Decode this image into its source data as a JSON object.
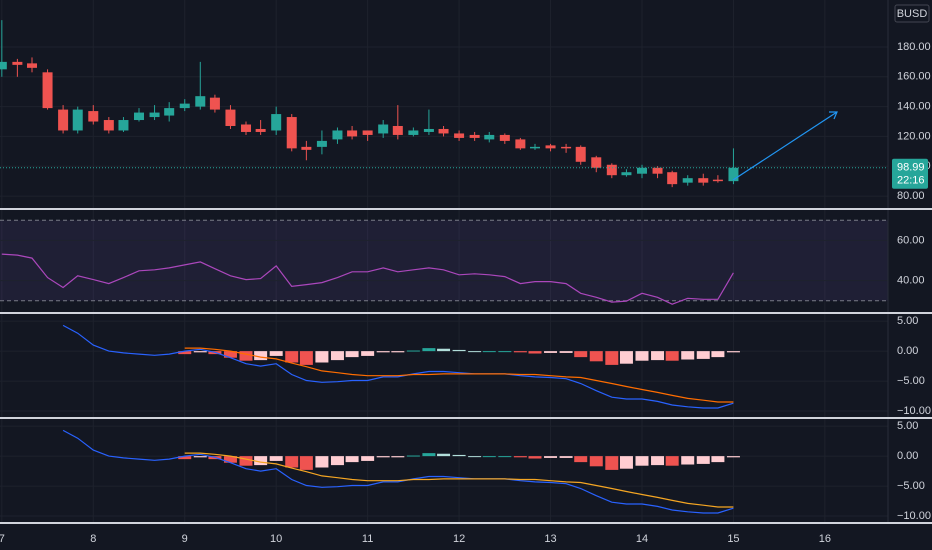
{
  "chart_data": [
    {
      "type": "candlestick",
      "currency": "BUSD",
      "x": [
        7,
        7.17,
        7.33,
        7.5,
        7.67,
        7.83,
        8,
        8.17,
        8.33,
        8.5,
        8.67,
        8.83,
        9,
        9.17,
        9.33,
        9.5,
        9.67,
        9.83,
        10,
        10.17,
        10.33,
        10.5,
        10.67,
        10.83,
        11,
        11.17,
        11.33,
        11.5,
        11.67,
        11.83,
        12,
        12.17,
        12.33,
        12.5,
        12.67,
        12.83,
        13,
        13.17,
        13.33,
        13.5,
        13.67,
        13.83,
        14,
        14.17,
        14.33,
        14.5,
        14.67,
        14.83,
        15
      ],
      "open": [
        165,
        170,
        169,
        163,
        138,
        124,
        137,
        131,
        124,
        131,
        133,
        134,
        139,
        140,
        146,
        138,
        128,
        125,
        124,
        133,
        113,
        113,
        118,
        124,
        124,
        122,
        127,
        121,
        123,
        125,
        122,
        121,
        118,
        121,
        118,
        112,
        114,
        113,
        113,
        106,
        101,
        94,
        95,
        99,
        96,
        89,
        92,
        91,
        90
      ],
      "high": [
        198,
        172,
        173,
        165,
        141,
        140,
        141,
        133,
        133,
        139,
        141,
        143,
        145,
        170,
        148,
        141,
        130,
        131,
        140,
        135,
        117,
        124,
        126,
        127,
        124,
        131,
        141,
        126,
        138,
        127,
        124,
        123,
        123,
        122,
        119,
        115,
        115,
        115,
        114,
        107,
        102,
        98,
        101,
        100,
        97,
        94,
        95,
        94,
        112
      ],
      "low": [
        160,
        160,
        163,
        138,
        122,
        122,
        128,
        122,
        123,
        130,
        131,
        130,
        137,
        138,
        136,
        125,
        121,
        121,
        121,
        110,
        104,
        108,
        115,
        118,
        117,
        119,
        118,
        120,
        121,
        120,
        117,
        117,
        116,
        115,
        111,
        111,
        110,
        109,
        101,
        96,
        92,
        93,
        92,
        92,
        86,
        87,
        87,
        89,
        88
      ],
      "close": [
        170,
        168,
        166,
        139,
        124,
        138,
        130,
        124,
        131,
        136,
        136,
        139,
        142,
        147,
        138,
        127,
        123,
        123,
        135,
        112,
        111,
        117,
        124,
        120,
        121,
        128,
        121,
        124,
        125,
        122,
        119,
        119,
        121,
        117,
        112,
        113,
        112,
        112,
        103,
        99,
        94,
        96,
        99,
        95,
        88,
        92,
        89,
        90,
        98.99
      ],
      "up_color": "#26a69a",
      "down_color": "#ef5350",
      "last_price": 98.99,
      "countdown": "22:16",
      "xlim": [
        6.98,
        16.69
      ],
      "xticks": [
        7,
        8,
        9,
        10,
        11,
        12,
        13,
        14,
        15,
        16
      ],
      "ylim": [
        72,
        211.5
      ],
      "yticks": [
        {
          "value": 80,
          "label": "80.00"
        },
        {
          "value": 100,
          "label": "100.00"
        },
        {
          "value": 120,
          "label": "120.00"
        },
        {
          "value": 140,
          "label": "140.00"
        },
        {
          "value": 160,
          "label": "160.00"
        },
        {
          "value": 180,
          "label": "180.00"
        }
      ]
    },
    {
      "type": "line",
      "values": [
        53.2,
        52.7,
        51.2,
        41.5,
        36.6,
        42.4,
        40.5,
        38.5,
        41.5,
        44.9,
        45.4,
        46.3,
        47.8,
        49.3,
        45.9,
        42.4,
        40.5,
        41,
        47.3,
        37.1,
        38,
        39,
        41.5,
        44.4,
        44.4,
        46.3,
        44.4,
        45.4,
        46.3,
        45.4,
        42.9,
        43.4,
        42.9,
        42,
        38.5,
        39.5,
        39.5,
        38.5,
        33.7,
        31.7,
        29.3,
        29.8,
        33.7,
        31.7,
        28.3,
        31.2,
        30.7,
        30.7,
        43.9
      ],
      "color": "#ab47bc",
      "band": [
        30,
        70
      ],
      "band_color": "#7e57c2",
      "ylim": [
        24.4,
        75.1
      ],
      "yticks": [
        {
          "value": 40,
          "label": "40.00"
        },
        {
          "value": 60,
          "label": "60.00"
        }
      ]
    },
    {
      "type": "macd",
      "series": [
        {
          "color": "#2962ff",
          "values": [
            null,
            null,
            null,
            null,
            4.3,
            3,
            1,
            0,
            -0.3,
            -0.5,
            -0.7,
            -0.5,
            0,
            0.3,
            -0.2,
            -1.1,
            -2.1,
            -2.5,
            -2.1,
            -3.9,
            -4.9,
            -5.2,
            -5.1,
            -4.9,
            -4.9,
            -4.3,
            -4.3,
            -3.8,
            -3.4,
            -3.4,
            -3.6,
            -3.8,
            -3.8,
            -3.8,
            -4.1,
            -4.3,
            -4.4,
            -4.6,
            -5.4,
            -6.6,
            -7.7,
            -8,
            -8,
            -8.4,
            -9,
            -9.3,
            -9.5,
            -9.5,
            -8.7
          ]
        },
        {
          "color": "#ff6d00",
          "values": [
            null,
            null,
            null,
            null,
            null,
            null,
            null,
            null,
            null,
            null,
            null,
            null,
            0.5,
            0.5,
            0.3,
            0,
            -0.5,
            -1,
            -1.3,
            -2,
            -2.6,
            -3.3,
            -3.6,
            -3.9,
            -4.1,
            -4.1,
            -4.1,
            -3.9,
            -3.9,
            -3.8,
            -3.8,
            -3.8,
            -3.8,
            -3.8,
            -3.9,
            -3.9,
            -4.1,
            -4.3,
            -4.4,
            -4.9,
            -5.4,
            -5.9,
            -6.4,
            -6.9,
            -7.4,
            -7.9,
            -8.2,
            -8.5,
            -8.5
          ]
        }
      ],
      "histogram": [
        null,
        null,
        null,
        null,
        null,
        null,
        null,
        null,
        null,
        null,
        null,
        null,
        -0.5,
        -0.2,
        -0.5,
        -1.1,
        -1.6,
        -1.5,
        -0.8,
        -1.9,
        -2.3,
        -1.9,
        -1.5,
        -1,
        -0.8,
        -0.2,
        -0.2,
        0.1,
        0.5,
        0.4,
        0.2,
        0,
        0,
        0,
        -0.2,
        -0.4,
        -0.3,
        -0.3,
        -1,
        -1.7,
        -2.3,
        -2.1,
        -1.6,
        -1.5,
        -1.6,
        -1.4,
        -1.3,
        -1,
        -0.2
      ],
      "histogram_colors": {
        "grow_above": "#26a69a",
        "fall_above": "#b2dfdb",
        "grow_below": "#ffcdd2",
        "fall_below": "#ef5350"
      },
      "ylim": [
        -11,
        6.2
      ],
      "yticks": [
        {
          "value": -10,
          "label": "−10.00"
        },
        {
          "value": -5,
          "label": "−5.00"
        },
        {
          "value": 0,
          "label": "0.00"
        },
        {
          "value": 5,
          "label": "5.00"
        }
      ]
    },
    {
      "type": "macd",
      "series": [
        {
          "color": "#2962ff",
          "values": [
            null,
            null,
            null,
            null,
            4.3,
            3,
            1,
            0,
            -0.3,
            -0.5,
            -0.7,
            -0.5,
            0,
            0.3,
            -0.2,
            -1.1,
            -2.1,
            -2.5,
            -2.1,
            -3.9,
            -4.9,
            -5.2,
            -5.1,
            -4.9,
            -4.9,
            -4.3,
            -4.3,
            -3.8,
            -3.4,
            -3.4,
            -3.6,
            -3.8,
            -3.8,
            -3.8,
            -4.1,
            -4.3,
            -4.4,
            -4.6,
            -5.4,
            -6.6,
            -7.7,
            -8,
            -8,
            -8.4,
            -9,
            -9.3,
            -9.5,
            -9.5,
            -8.7
          ]
        },
        {
          "color": "#f5a623",
          "values": [
            null,
            null,
            null,
            null,
            null,
            null,
            null,
            null,
            null,
            null,
            null,
            null,
            0.5,
            0.5,
            0.3,
            0,
            -0.5,
            -1,
            -1.3,
            -2,
            -2.6,
            -3.3,
            -3.6,
            -3.9,
            -4.1,
            -4.1,
            -4.1,
            -3.9,
            -3.9,
            -3.8,
            -3.8,
            -3.8,
            -3.8,
            -3.8,
            -3.9,
            -3.9,
            -4.1,
            -4.3,
            -4.4,
            -4.9,
            -5.4,
            -5.9,
            -6.4,
            -6.9,
            -7.4,
            -7.9,
            -8.2,
            -8.5,
            -8.5
          ]
        }
      ],
      "histogram": [
        null,
        null,
        null,
        null,
        null,
        null,
        null,
        null,
        null,
        null,
        null,
        null,
        -0.5,
        -0.2,
        -0.5,
        -1.1,
        -1.6,
        -1.5,
        -0.8,
        -1.9,
        -2.3,
        -1.9,
        -1.5,
        -1,
        -0.8,
        -0.2,
        -0.2,
        0.1,
        0.5,
        0.4,
        0.2,
        0,
        0,
        0,
        -0.2,
        -0.4,
        -0.3,
        -0.3,
        -1,
        -1.7,
        -2.3,
        -2.1,
        -1.6,
        -1.5,
        -1.6,
        -1.4,
        -1.3,
        -1,
        -0.2
      ],
      "histogram_colors": {
        "grow_above": "#26a69a",
        "fall_above": "#b2dfdb",
        "grow_below": "#ffcdd2",
        "fall_below": "#ef5350"
      },
      "ylim": [
        -11,
        6.2
      ],
      "yticks": [
        {
          "value": -10,
          "label": "−10.00"
        },
        {
          "value": -5,
          "label": "−5.00"
        },
        {
          "value": 0,
          "label": "0.00"
        },
        {
          "value": 5,
          "label": "5.00"
        }
      ]
    }
  ]
}
